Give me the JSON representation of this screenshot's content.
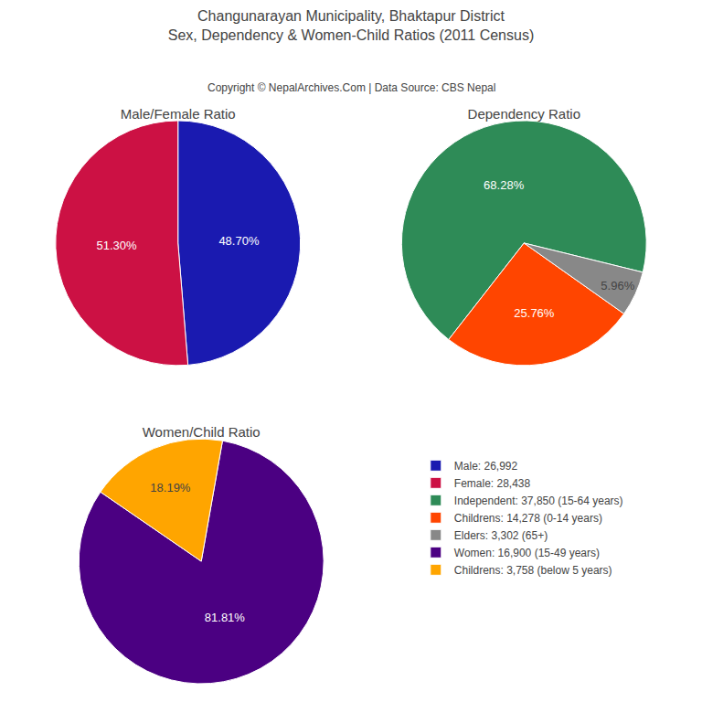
{
  "title": [
    "Changunarayan Municipality, Bhaktapur District",
    "Sex, Dependency & Women-Child Ratios (2011 Census)"
  ],
  "subtitle": "Copyright © NepalArchives.Com | Data Source: CBS Nepal",
  "chart_data": [
    {
      "type": "pie",
      "title": "Male/Female Ratio",
      "categories": [
        "Male: 26,992",
        "Female: 28,438"
      ],
      "values": [
        48.7,
        51.3
      ],
      "value_labels": [
        "48.70%",
        "51.30%"
      ],
      "colors": [
        "#1a1ab0",
        "#CC1144"
      ]
    },
    {
      "type": "pie",
      "title": "Dependency Ratio",
      "categories": [
        "Independent: 37,850 (15-64 years)",
        "Childrens: 14,278 (0-14 years)",
        "Elders: 3,302 (65+)"
      ],
      "values": [
        68.28,
        25.76,
        5.96
      ],
      "value_labels": [
        "68.28%",
        "25.76%",
        "5.96%"
      ],
      "colors": [
        "#2E8B57",
        "#FF4500",
        "#888888"
      ]
    },
    {
      "type": "pie",
      "title": "Women/Child Ratio",
      "categories": [
        "Women: 16,900 (15-49 years)",
        "Childrens: 3,758 (below 5 years)"
      ],
      "values": [
        81.81,
        18.19
      ],
      "value_labels": [
        "81.81%",
        "18.19%"
      ],
      "colors": [
        "#4B0082",
        "#FFA500"
      ]
    }
  ]
}
